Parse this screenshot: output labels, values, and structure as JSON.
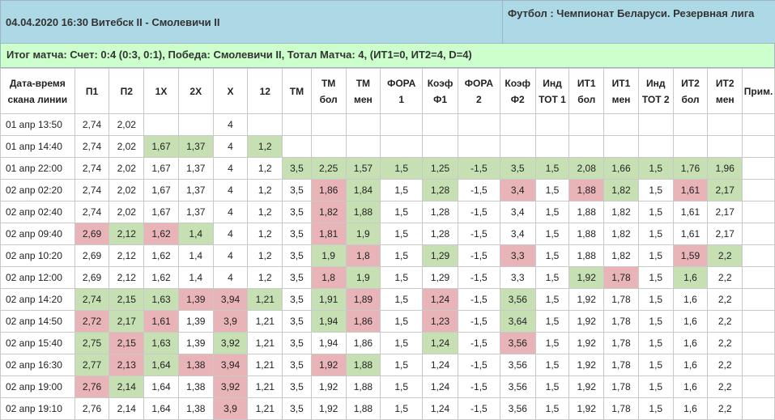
{
  "header": {
    "match": "04.04.2020 16:30 Витебск II - Смолевичи II",
    "tournament": "Футбол : Чемпионат Беларуси. Резервная лига"
  },
  "result": "Итог матча: Счет: 0:4 (0:3, 0:1), Победа: Смолевичи II, Тотал Матча: 4, (ИТ1=0, ИТ2=4, D=4)",
  "colors": {
    "header_bg": "#add8e6",
    "result_bg": "#ccffcc",
    "up": "#c6e0b4",
    "down": "#e8b4b8"
  },
  "columns": [
    [
      "Дата-время",
      "скана линии"
    ],
    [
      "П1"
    ],
    [
      "П2"
    ],
    [
      "1X"
    ],
    [
      "2X"
    ],
    [
      "X"
    ],
    [
      "12"
    ],
    [
      "ТМ"
    ],
    [
      "ТМ",
      "бол"
    ],
    [
      "ТМ",
      "мен"
    ],
    [
      "ФОРА",
      "1"
    ],
    [
      "Коэф",
      "Ф1"
    ],
    [
      "ФОРА",
      "2"
    ],
    [
      "Коэф",
      "Ф2"
    ],
    [
      "Инд",
      "ТОТ 1"
    ],
    [
      "ИТ1",
      "бол"
    ],
    [
      "ИТ1",
      "мен"
    ],
    [
      "Инд",
      "ТОТ 2"
    ],
    [
      "ИТ2",
      "бол"
    ],
    [
      "ИТ2",
      "мен"
    ],
    [
      "Прим."
    ]
  ],
  "rows": [
    {
      "cells": [
        "01 апр 13:50",
        "2,74",
        "2,02",
        "",
        "",
        "4",
        "",
        "",
        "",
        "",
        "",
        "",
        "",
        "",
        "",
        "",
        "",
        "",
        "",
        "",
        ""
      ]
    },
    {
      "cells": [
        "01 апр 14:40",
        "2,74",
        "2,02",
        "1,67",
        "1,37",
        "4",
        "1,2",
        "",
        "",
        "",
        "",
        "",
        "",
        "",
        "",
        "",
        "",
        "",
        "",
        "",
        ""
      ],
      "up": [
        3,
        4,
        6
      ]
    },
    {
      "cells": [
        "01 апр 22:00",
        "2,74",
        "2,02",
        "1,67",
        "1,37",
        "4",
        "1,2",
        "3,5",
        "2,25",
        "1,57",
        "1,5",
        "1,25",
        "-1,5",
        "3,5",
        "1,5",
        "2,08",
        "1,66",
        "1,5",
        "1,76",
        "1,96",
        ""
      ],
      "up": [
        7,
        8,
        9,
        10,
        11,
        12,
        13,
        14,
        15,
        16,
        17,
        18,
        19
      ]
    },
    {
      "cells": [
        "02 апр 02:20",
        "2,74",
        "2,02",
        "1,67",
        "1,37",
        "4",
        "1,2",
        "3,5",
        "1,86",
        "1,84",
        "1,5",
        "1,28",
        "-1,5",
        "3,4",
        "1,5",
        "1,88",
        "1,82",
        "1,5",
        "1,61",
        "2,17",
        ""
      ],
      "up": [
        9,
        11,
        16,
        19
      ],
      "down": [
        8,
        13,
        15,
        18
      ]
    },
    {
      "cells": [
        "02 апр 02:40",
        "2,74",
        "2,02",
        "1,67",
        "1,37",
        "4",
        "1,2",
        "3,5",
        "1,82",
        "1,88",
        "1,5",
        "1,28",
        "-1,5",
        "3,4",
        "1,5",
        "1,88",
        "1,82",
        "1,5",
        "1,61",
        "2,17",
        ""
      ],
      "up": [
        9
      ],
      "down": [
        8
      ]
    },
    {
      "cells": [
        "02 апр 09:40",
        "2,69",
        "2,12",
        "1,62",
        "1,4",
        "4",
        "1,2",
        "3,5",
        "1,81",
        "1,9",
        "1,5",
        "1,28",
        "-1,5",
        "3,4",
        "1,5",
        "1,88",
        "1,82",
        "1,5",
        "1,61",
        "2,17",
        ""
      ],
      "up": [
        2,
        4,
        9
      ],
      "down": [
        1,
        3,
        8
      ]
    },
    {
      "cells": [
        "02 апр 10:20",
        "2,69",
        "2,12",
        "1,62",
        "1,4",
        "4",
        "1,2",
        "3,5",
        "1,9",
        "1,8",
        "1,5",
        "1,29",
        "-1,5",
        "3,3",
        "1,5",
        "1,88",
        "1,82",
        "1,5",
        "1,59",
        "2,2",
        ""
      ],
      "up": [
        8,
        11,
        19
      ],
      "down": [
        9,
        13,
        18
      ]
    },
    {
      "cells": [
        "02 апр 12:00",
        "2,69",
        "2,12",
        "1,62",
        "1,4",
        "4",
        "1,2",
        "3,5",
        "1,8",
        "1,9",
        "1,5",
        "1,29",
        "-1,5",
        "3,3",
        "1,5",
        "1,92",
        "1,78",
        "1,5",
        "1,6",
        "2,2",
        ""
      ],
      "up": [
        9,
        15,
        18
      ],
      "down": [
        8,
        16
      ]
    },
    {
      "cells": [
        "02 апр 14:20",
        "2,74",
        "2,15",
        "1,63",
        "1,39",
        "3,94",
        "1,21",
        "3,5",
        "1,91",
        "1,89",
        "1,5",
        "1,24",
        "-1,5",
        "3,56",
        "1,5",
        "1,92",
        "1,78",
        "1,5",
        "1,6",
        "2,2",
        ""
      ],
      "up": [
        1,
        2,
        3,
        6,
        8,
        13
      ],
      "down": [
        4,
        5,
        9,
        11
      ]
    },
    {
      "cells": [
        "02 апр 14:50",
        "2,72",
        "2,17",
        "1,61",
        "1,39",
        "3,9",
        "1,21",
        "3,5",
        "1,94",
        "1,86",
        "1,5",
        "1,23",
        "-1,5",
        "3,64",
        "1,5",
        "1,92",
        "1,78",
        "1,5",
        "1,6",
        "2,2",
        ""
      ],
      "up": [
        2,
        8,
        13
      ],
      "down": [
        1,
        3,
        5,
        9,
        11
      ]
    },
    {
      "cells": [
        "02 апр 15:40",
        "2,75",
        "2,15",
        "1,63",
        "1,39",
        "3,92",
        "1,21",
        "3,5",
        "1,94",
        "1,86",
        "1,5",
        "1,24",
        "-1,5",
        "3,56",
        "1,5",
        "1,92",
        "1,78",
        "1,5",
        "1,6",
        "2,2",
        ""
      ],
      "up": [
        1,
        3,
        5,
        11
      ],
      "down": [
        2,
        13
      ]
    },
    {
      "cells": [
        "02 апр 16:30",
        "2,77",
        "2,13",
        "1,64",
        "1,38",
        "3,94",
        "1,21",
        "3,5",
        "1,92",
        "1,88",
        "1,5",
        "1,24",
        "-1,5",
        "3,56",
        "1,5",
        "1,92",
        "1,78",
        "1,5",
        "1,6",
        "2,2",
        ""
      ],
      "up": [
        1,
        3,
        9
      ],
      "down": [
        2,
        4,
        5,
        8
      ]
    },
    {
      "cells": [
        "02 апр 19:00",
        "2,76",
        "2,14",
        "1,64",
        "1,38",
        "3,92",
        "1,21",
        "3,5",
        "1,92",
        "1,88",
        "1,5",
        "1,24",
        "-1,5",
        "3,56",
        "1,5",
        "1,92",
        "1,78",
        "1,5",
        "1,6",
        "2,2",
        ""
      ],
      "up": [
        2
      ],
      "down": [
        1,
        5
      ]
    },
    {
      "cells": [
        "02 апр 19:10",
        "2,76",
        "2,14",
        "1,64",
        "1,38",
        "3,9",
        "1,21",
        "3,5",
        "1,92",
        "1,88",
        "1,5",
        "1,24",
        "-1,5",
        "3,56",
        "1,5",
        "1,92",
        "1,78",
        "1,5",
        "1,6",
        "2,2",
        ""
      ],
      "down": [
        5
      ]
    }
  ]
}
